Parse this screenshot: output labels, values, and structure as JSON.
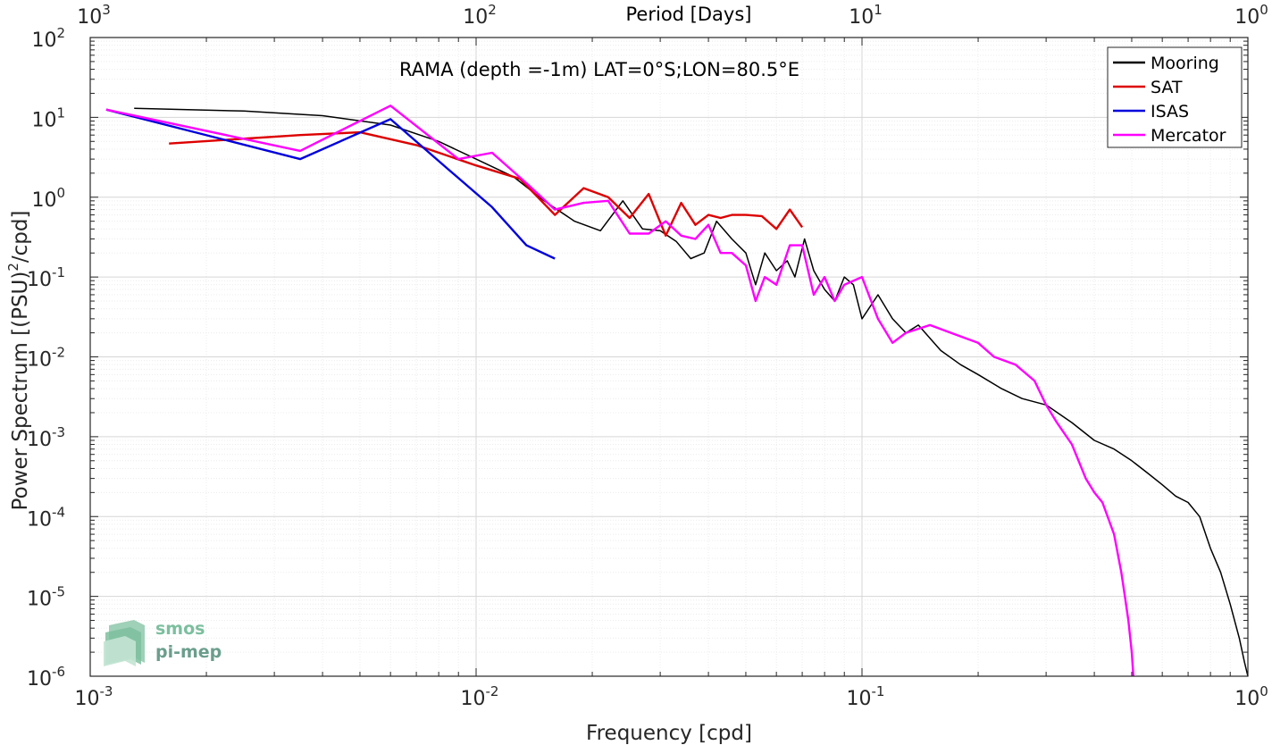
{
  "chart_data": {
    "type": "line",
    "annotation": "RAMA (depth =-1m) LAT=0°S;LON=80.5°E",
    "xlabel": "Frequency [cpd]",
    "ylabel": "Power Spectrum [(PSU)",
    "ylabel_exp": "2",
    "ylabel_end": "/cpd]",
    "top_xlabel": "Period [Days]",
    "x_scale": "log",
    "y_scale": "log",
    "xlim": [
      0.001,
      1
    ],
    "ylim": [
      1e-06,
      100
    ],
    "grid": true,
    "legend_position": "top-right",
    "x_ticks": [
      {
        "value": 0.001,
        "base": "10",
        "exp": "-3"
      },
      {
        "value": 0.01,
        "base": "10",
        "exp": "-2"
      },
      {
        "value": 0.1,
        "base": "10",
        "exp": "-1"
      },
      {
        "value": 1,
        "base": "10",
        "exp": "0"
      }
    ],
    "top_ticks": [
      {
        "value": 0.001,
        "base": "10",
        "exp": "3"
      },
      {
        "value": 0.01,
        "base": "10",
        "exp": "2"
      },
      {
        "value": 0.1,
        "base": "10",
        "exp": "1"
      },
      {
        "value": 1,
        "base": "10",
        "exp": "0"
      }
    ],
    "y_ticks": [
      {
        "value": 100,
        "base": "10",
        "exp": "2"
      },
      {
        "value": 10,
        "base": "10",
        "exp": "1"
      },
      {
        "value": 1,
        "base": "10",
        "exp": "0"
      },
      {
        "value": 0.1,
        "base": "10",
        "exp": "-1"
      },
      {
        "value": 0.01,
        "base": "10",
        "exp": "-2"
      },
      {
        "value": 0.001,
        "base": "10",
        "exp": "-3"
      },
      {
        "value": 0.0001,
        "base": "10",
        "exp": "-4"
      },
      {
        "value": 1e-05,
        "base": "10",
        "exp": "-5"
      },
      {
        "value": 1e-06,
        "base": "10",
        "exp": "-6"
      }
    ],
    "series": [
      {
        "name": "Mooring",
        "color": "#000000",
        "x": [
          0.0013,
          0.0025,
          0.004,
          0.006,
          0.008,
          0.01,
          0.0125,
          0.015,
          0.018,
          0.021,
          0.024,
          0.027,
          0.03,
          0.033,
          0.036,
          0.039,
          0.042,
          0.046,
          0.05,
          0.053,
          0.056,
          0.06,
          0.064,
          0.067,
          0.071,
          0.075,
          0.08,
          0.085,
          0.09,
          0.095,
          0.1,
          0.11,
          0.12,
          0.13,
          0.14,
          0.16,
          0.18,
          0.2,
          0.23,
          0.26,
          0.3,
          0.35,
          0.4,
          0.45,
          0.5,
          0.55,
          0.6,
          0.65,
          0.7,
          0.75,
          0.8,
          0.85,
          0.9,
          0.95,
          0.98,
          1.0
        ],
        "y": [
          13,
          12,
          10.5,
          8,
          5,
          3,
          1.8,
          0.9,
          0.5,
          0.38,
          0.9,
          0.4,
          0.38,
          0.28,
          0.17,
          0.2,
          0.5,
          0.3,
          0.2,
          0.08,
          0.2,
          0.12,
          0.16,
          0.1,
          0.3,
          0.12,
          0.07,
          0.05,
          0.1,
          0.08,
          0.03,
          0.06,
          0.03,
          0.02,
          0.025,
          0.012,
          0.008,
          0.006,
          0.004,
          0.003,
          0.0025,
          0.0015,
          0.0009,
          0.0007,
          0.0005,
          0.00035,
          0.00025,
          0.00018,
          0.00015,
          0.0001,
          4e-05,
          2e-05,
          8e-06,
          3e-06,
          1.5e-06,
          1e-06
        ]
      },
      {
        "name": "SAT",
        "color": "#dd0000",
        "x": [
          0.0016,
          0.0035,
          0.005,
          0.007,
          0.01,
          0.013,
          0.016,
          0.019,
          0.022,
          0.025,
          0.028,
          0.031,
          0.034,
          0.037,
          0.04,
          0.043,
          0.046,
          0.05,
          0.055,
          0.06,
          0.065,
          0.07
        ],
        "y": [
          4.7,
          6,
          6.5,
          4.5,
          2.5,
          1.7,
          0.6,
          1.3,
          1,
          0.55,
          1.1,
          0.33,
          0.85,
          0.45,
          0.6,
          0.55,
          0.6,
          0.6,
          0.58,
          0.4,
          0.7,
          0.42
        ]
      },
      {
        "name": "ISAS",
        "color": "#0000dd",
        "x": [
          0.0011,
          0.0035,
          0.006,
          0.0085,
          0.011,
          0.0135,
          0.016
        ],
        "y": [
          12.5,
          3,
          9.5,
          2.2,
          0.75,
          0.25,
          0.17
        ]
      },
      {
        "name": "Mercator",
        "color": "#ff00ff",
        "x": [
          0.0011,
          0.0035,
          0.006,
          0.009,
          0.011,
          0.0135,
          0.016,
          0.019,
          0.022,
          0.025,
          0.028,
          0.031,
          0.034,
          0.037,
          0.04,
          0.043,
          0.046,
          0.05,
          0.053,
          0.056,
          0.06,
          0.065,
          0.07,
          0.075,
          0.08,
          0.085,
          0.09,
          0.1,
          0.11,
          0.12,
          0.13,
          0.15,
          0.17,
          0.2,
          0.22,
          0.25,
          0.28,
          0.3,
          0.32,
          0.35,
          0.38,
          0.4,
          0.42,
          0.45,
          0.47,
          0.48,
          0.49,
          0.5,
          0.505
        ],
        "y": [
          12.5,
          3.8,
          14,
          3,
          3.6,
          1.5,
          0.7,
          0.85,
          0.9,
          0.35,
          0.35,
          0.5,
          0.33,
          0.3,
          0.45,
          0.2,
          0.2,
          0.14,
          0.05,
          0.1,
          0.08,
          0.25,
          0.25,
          0.06,
          0.1,
          0.05,
          0.08,
          0.1,
          0.03,
          0.015,
          0.02,
          0.025,
          0.02,
          0.015,
          0.01,
          0.008,
          0.005,
          0.0025,
          0.0015,
          0.0008,
          0.0003,
          0.0002,
          0.00015,
          6e-05,
          2e-05,
          1e-05,
          5e-06,
          2e-06,
          1e-06
        ]
      }
    ]
  },
  "logo": {
    "line1": "smos",
    "line2": "pi-mep"
  }
}
